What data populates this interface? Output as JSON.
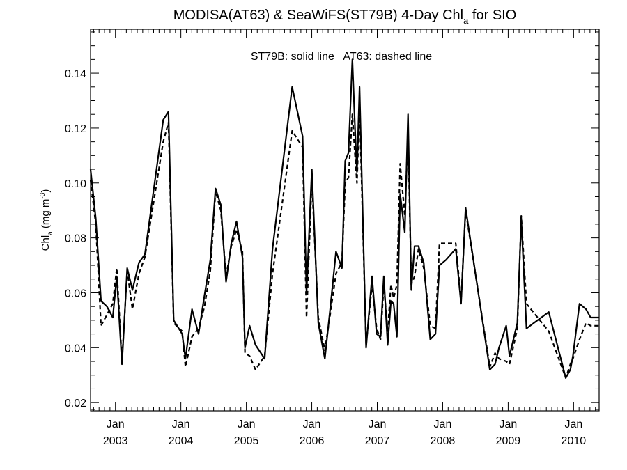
{
  "chart_data": {
    "type": "line",
    "title_main": "MODISA(AT63) & SeaWiFS(ST79B) 4-Day Chl",
    "title_sub": "a",
    "title_tail": " for SIO",
    "annotation": "ST79B: solid line   AT63: dashed line",
    "ylabel_text": "Chl",
    "ylabel_sub": "a",
    "ylabel_units": " (mg m",
    "ylabel_sup": "-3",
    "ylabel_close": ")",
    "ylim": [
      0.017,
      0.156
    ],
    "xlim": [
      2002.62,
      2010.39
    ],
    "yticks_major": [
      0.02,
      0.04,
      0.06,
      0.08,
      0.1,
      0.12,
      0.14
    ],
    "ytick_labels": [
      "0.02",
      "0.04",
      "0.06",
      "0.08",
      "0.10",
      "0.12",
      "0.14"
    ],
    "xticks_major": [
      {
        "month": "Jan",
        "year": "2003",
        "x": 2003.0
      },
      {
        "month": "Jan",
        "year": "2004",
        "x": 2004.0
      },
      {
        "month": "Jan",
        "year": "2005",
        "x": 2005.0
      },
      {
        "month": "Jan",
        "year": "2006",
        "x": 2006.0
      },
      {
        "month": "Jan",
        "year": "2007",
        "x": 2007.0
      },
      {
        "month": "Jan",
        "year": "2008",
        "x": 2008.0
      },
      {
        "month": "Jan",
        "year": "2009",
        "x": 2009.0
      },
      {
        "month": "Jan",
        "year": "2010",
        "x": 2010.0
      }
    ],
    "grid": false,
    "series": [
      {
        "name": "ST79B",
        "style": "solid",
        "x": [
          2002.62,
          2002.7,
          2002.78,
          2002.87,
          2002.96,
          2003.02,
          2003.1,
          2003.18,
          2003.26,
          2003.36,
          2003.45,
          2003.73,
          2003.81,
          2003.89,
          2004.02,
          2004.07,
          2004.17,
          2004.27,
          2004.36,
          2004.45,
          2004.53,
          2004.61,
          2004.69,
          2004.77,
          2004.85,
          2004.94,
          2004.98,
          2005.05,
          2005.14,
          2005.28,
          2005.4,
          2005.7,
          2005.86,
          2005.92,
          2006.0,
          2006.1,
          2006.2,
          2006.28,
          2006.37,
          2006.46,
          2006.51,
          2006.56,
          2006.62,
          2006.66,
          2006.69,
          2006.73,
          2006.83,
          2006.92,
          2006.99,
          2007.05,
          2007.1,
          2007.16,
          2007.21,
          2007.25,
          2007.3,
          2007.35,
          2007.42,
          2007.47,
          2007.52,
          2007.57,
          2007.63,
          2007.71,
          2007.81,
          2007.89,
          2007.95,
          2008.05,
          2008.2,
          2008.28,
          2008.35,
          2008.72,
          2008.8,
          2008.86,
          2008.97,
          2009.02,
          2009.14,
          2009.2,
          2009.28,
          2009.62,
          2009.88,
          2009.95,
          2009.99,
          2010.09,
          2010.19,
          2010.26,
          2010.35,
          2010.39
        ],
        "y": [
          0.105,
          0.087,
          0.057,
          0.055,
          0.051,
          0.066,
          0.034,
          0.069,
          0.061,
          0.071,
          0.074,
          0.123,
          0.126,
          0.05,
          0.045,
          0.036,
          0.054,
          0.045,
          0.059,
          0.072,
          0.098,
          0.092,
          0.064,
          0.078,
          0.086,
          0.073,
          0.04,
          0.048,
          0.041,
          0.036,
          0.076,
          0.135,
          0.117,
          0.06,
          0.105,
          0.049,
          0.036,
          0.054,
          0.075,
          0.069,
          0.108,
          0.111,
          0.145,
          0.12,
          0.104,
          0.135,
          0.04,
          0.066,
          0.045,
          0.044,
          0.066,
          0.041,
          0.057,
          0.056,
          0.044,
          0.096,
          0.082,
          0.125,
          0.061,
          0.077,
          0.077,
          0.071,
          0.043,
          0.045,
          0.07,
          0.072,
          0.076,
          0.056,
          0.091,
          0.032,
          0.034,
          0.04,
          0.048,
          0.037,
          0.049,
          0.087,
          0.047,
          0.053,
          0.029,
          0.032,
          0.037,
          0.056,
          0.054,
          0.051,
          0.051,
          0.051
        ]
      },
      {
        "name": "AT63",
        "style": "dashed",
        "x": [
          2002.62,
          2002.7,
          2002.78,
          2002.87,
          2002.96,
          2003.02,
          2003.1,
          2003.18,
          2003.26,
          2003.36,
          2003.45,
          2003.73,
          2003.81,
          2003.89,
          2004.02,
          2004.07,
          2004.17,
          2004.27,
          2004.36,
          2004.45,
          2004.53,
          2004.61,
          2004.69,
          2004.77,
          2004.85,
          2004.94,
          2004.98,
          2005.05,
          2005.14,
          2005.28,
          2005.4,
          2005.7,
          2005.86,
          2005.92,
          2006.0,
          2006.1,
          2006.2,
          2006.28,
          2006.37,
          2006.46,
          2006.51,
          2006.56,
          2006.62,
          2006.66,
          2006.69,
          2006.73,
          2006.83,
          2006.92,
          2006.99,
          2007.05,
          2007.1,
          2007.16,
          2007.21,
          2007.25,
          2007.3,
          2007.35,
          2007.42,
          2007.47,
          2007.52,
          2007.57,
          2007.63,
          2007.71,
          2007.81,
          2007.89,
          2007.95,
          2008.05,
          2008.2,
          2008.28,
          2008.35,
          2008.72,
          2008.8,
          2008.86,
          2008.97,
          2009.02,
          2009.14,
          2009.2,
          2009.28,
          2009.62,
          2009.88,
          2009.95,
          2009.99,
          2010.09,
          2010.19,
          2010.26,
          2010.35,
          2010.39
        ],
        "y": [
          0.101,
          0.085,
          0.048,
          0.052,
          0.056,
          0.069,
          0.035,
          0.068,
          0.054,
          0.067,
          0.073,
          0.115,
          0.122,
          0.049,
          0.046,
          0.033,
          0.044,
          0.047,
          0.055,
          0.068,
          0.097,
          0.09,
          0.066,
          0.077,
          0.083,
          0.075,
          0.038,
          0.037,
          0.032,
          0.037,
          0.067,
          0.119,
          0.113,
          0.051,
          0.101,
          0.051,
          0.039,
          0.052,
          0.067,
          0.071,
          0.1,
          0.102,
          0.125,
          0.11,
          0.1,
          0.128,
          0.041,
          0.063,
          0.047,
          0.043,
          0.063,
          0.046,
          0.063,
          0.058,
          0.063,
          0.107,
          0.088,
          0.118,
          0.063,
          0.066,
          0.076,
          0.069,
          0.048,
          0.047,
          0.078,
          0.078,
          0.078,
          0.057,
          0.09,
          0.033,
          0.038,
          0.036,
          0.035,
          0.034,
          0.047,
          0.088,
          0.056,
          0.046,
          0.029,
          0.034,
          0.036,
          0.043,
          0.049,
          0.048,
          0.048,
          0.048
        ]
      }
    ]
  }
}
